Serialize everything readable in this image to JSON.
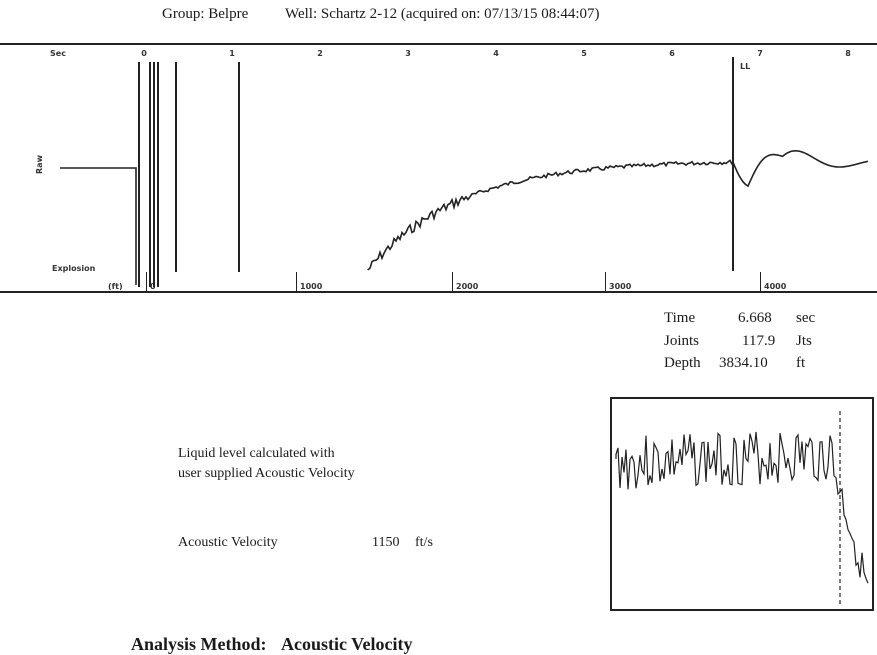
{
  "header": {
    "group": "Group: Belpre",
    "well": "Well: Schartz 2-12 (acquired on: 07/13/15 08:44:07)"
  },
  "trace": {
    "sec_axis_title": "Sec",
    "sec_ticks": [
      "0",
      "1",
      "2",
      "3",
      "4",
      "5",
      "6",
      "7",
      "8"
    ],
    "ft_axis_title": "(ft)",
    "ft_ticks": [
      "0",
      "1000",
      "2000",
      "3000",
      "4000"
    ],
    "y_label": "Raw",
    "explosion_label": "Explosion",
    "marker_label": "LL"
  },
  "readouts": {
    "time_label": "Time",
    "time_value": "6.668",
    "time_unit": "sec",
    "joints_label": "Joints",
    "joints_value": "117.9",
    "joints_unit": "Jts",
    "depth_label": "Depth",
    "depth_value": "3834.10",
    "depth_unit": "ft"
  },
  "notes": {
    "line1": "Liquid level calculated with",
    "line2": "user supplied Acoustic Velocity",
    "velocity_label": "Acoustic Velocity",
    "velocity_value": "1150",
    "velocity_unit": "ft/s"
  },
  "analysis": {
    "label": "Analysis Method:",
    "value": "Acoustic Velocity"
  }
}
